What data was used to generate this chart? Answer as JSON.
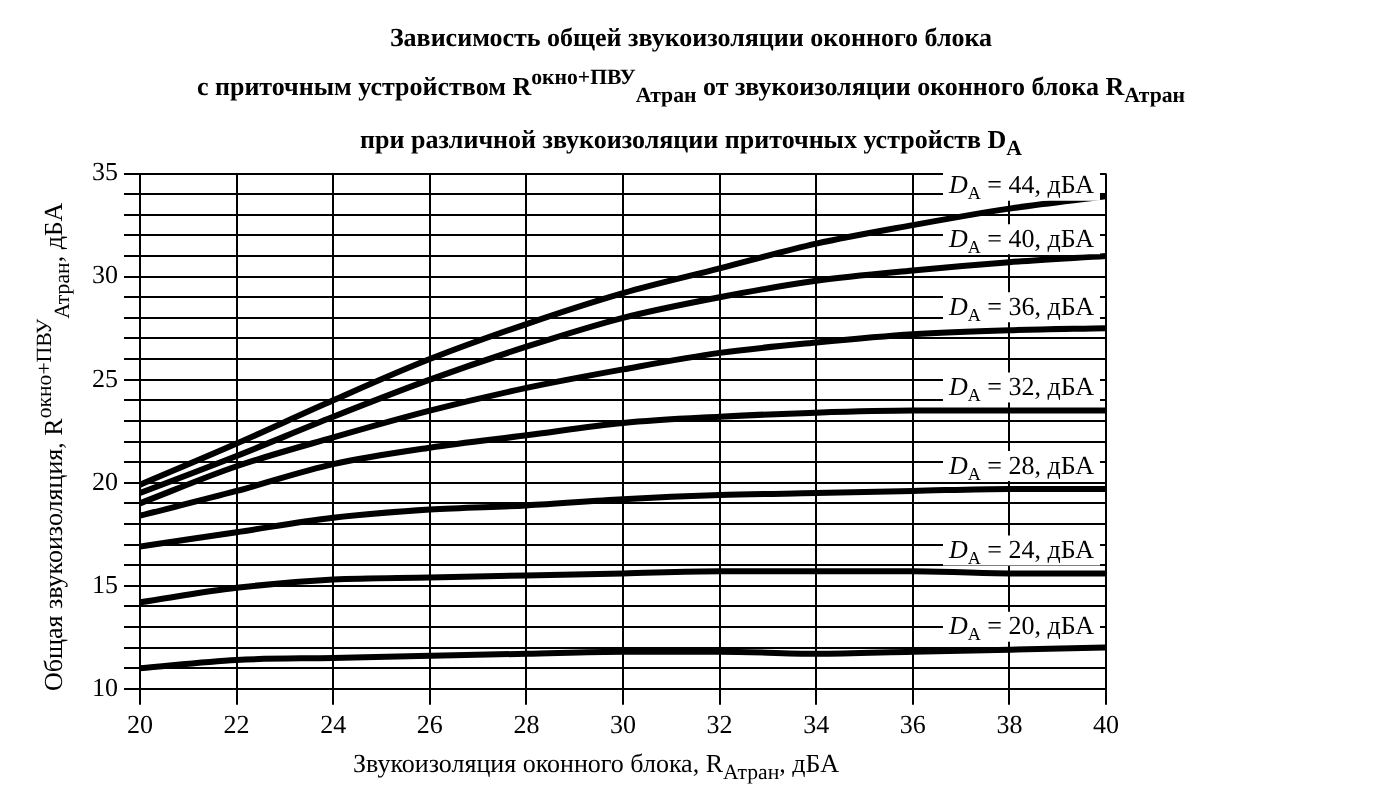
{
  "chart_data": {
    "type": "line",
    "title": "Зависимость общей звукоизоляции оконного блока\nс приточным устройством R$^{окно+ПВУ}$$_{Атран}$ от звукоизоляции оконного блока R$_{Атран}$\nпри различной звукоизоляции приточных устройств D$_{A}$",
    "xlabel": "Звукоизоляция оконного блока, R$_{Атран}$, дБА",
    "ylabel": "Общая звукоизоляция, R$^{окно+ПВУ}$$_{Атран}$, дБА",
    "x": [
      20,
      22,
      24,
      26,
      28,
      30,
      32,
      34,
      36,
      38,
      40
    ],
    "series": [
      {
        "name": "D$_{A}$ = 44, дБА",
        "color": "#000000",
        "values": [
          19.9,
          21.9,
          24.0,
          26.0,
          27.7,
          29.2,
          30.4,
          31.6,
          32.5,
          33.3,
          33.9
        ]
      },
      {
        "name": "D$_{A}$ = 40, дБА",
        "color": "#000000",
        "values": [
          19.5,
          21.3,
          23.2,
          25.0,
          26.6,
          28.0,
          29.0,
          29.8,
          30.3,
          30.7,
          31.0
        ]
      },
      {
        "name": "D$_{A}$ = 36, дБА",
        "color": "#000000",
        "values": [
          19.0,
          20.8,
          22.2,
          23.5,
          24.6,
          25.5,
          26.3,
          26.8,
          27.2,
          27.4,
          27.5
        ]
      },
      {
        "name": "D$_{A}$ = 32, дБА",
        "color": "#000000",
        "values": [
          18.4,
          19.6,
          20.9,
          21.7,
          22.3,
          22.9,
          23.2,
          23.4,
          23.5,
          23.5,
          23.5
        ]
      },
      {
        "name": "D$_{A}$ = 28, дБА",
        "color": "#000000",
        "values": [
          16.9,
          17.6,
          18.3,
          18.7,
          18.9,
          19.2,
          19.4,
          19.5,
          19.6,
          19.7,
          19.7
        ]
      },
      {
        "name": "D$_{A}$ = 24, дБА",
        "color": "#000000",
        "values": [
          14.2,
          14.9,
          15.3,
          15.4,
          15.5,
          15.6,
          15.7,
          15.7,
          15.7,
          15.6,
          15.6
        ]
      },
      {
        "name": "D$_{A}$ = 20, дБА",
        "color": "#000000",
        "values": [
          11.0,
          11.4,
          11.5,
          11.6,
          11.7,
          11.8,
          11.8,
          11.7,
          11.8,
          11.9,
          12.0
        ]
      }
    ],
    "xlim": [
      20,
      40
    ],
    "xticks": [
      20,
      22,
      24,
      26,
      28,
      30,
      32,
      34,
      36,
      38,
      40
    ],
    "ylim": [
      10,
      35
    ],
    "yticks": [
      10,
      {
        "value": 11,
        "label": null
      },
      {
        "value": 12,
        "label": null
      },
      {
        "value": 13,
        "label": null
      },
      {
        "value": 14,
        "label": null
      },
      15,
      {
        "value": 16,
        "label": null
      },
      {
        "value": 17,
        "label": null
      },
      {
        "value": 18,
        "label": null
      },
      {
        "value": 19,
        "label": null
      },
      20,
      {
        "value": 21,
        "label": null
      },
      {
        "value": 22,
        "label": null
      },
      {
        "value": 23,
        "label": null
      },
      {
        "value": 24,
        "label": null
      },
      25,
      {
        "value": 26,
        "label": null
      },
      {
        "value": 27,
        "label": null
      },
      {
        "value": 28,
        "label": null
      },
      {
        "value": 29,
        "label": null
      },
      30,
      {
        "value": 31,
        "label": null
      },
      {
        "value": 32,
        "label": null
      },
      {
        "value": 33,
        "label": null
      },
      {
        "value": 34,
        "label": null
      },
      35
    ],
    "grid": true,
    "legend": false,
    "marker": "none",
    "line_style": "solid"
  }
}
